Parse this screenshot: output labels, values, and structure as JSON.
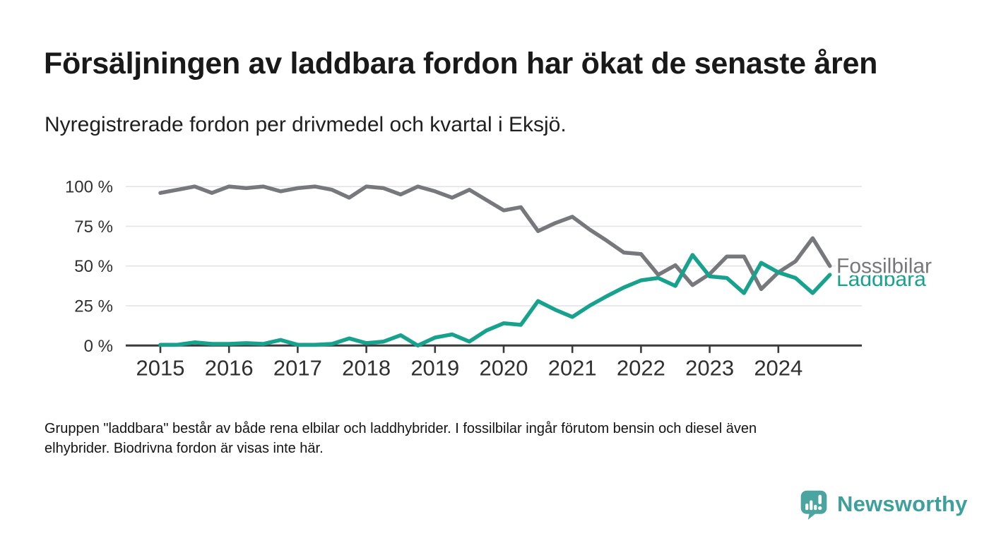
{
  "header": {
    "title": "Försäljningen av laddbara fordon har ökat de senaste åren",
    "subtitle": "Nyregistrerade fordon per drivmedel och kvartal i Eksjö."
  },
  "chart_data": {
    "type": "line",
    "title": "Försäljningen av laddbara fordon har ökat de senaste åren",
    "subtitle": "Nyregistrerade fordon per drivmedel och kvartal i Eksjö.",
    "unit": "percent",
    "ylim": [
      0,
      100
    ],
    "grid": true,
    "legend_position": "end-of-line-labels-right",
    "axis_color": "#3a3a3c",
    "grid_color": "#e4e4e6",
    "tick_color": "#303030",
    "y_ticks": [
      100,
      75,
      50,
      25,
      0
    ],
    "y_tick_labels": [
      "100 %",
      "75 %",
      "50 %",
      "25 %",
      "0 %"
    ],
    "x_tick_labels": [
      "2015",
      "2016",
      "2017",
      "2018",
      "2019",
      "2020",
      "2021",
      "2022",
      "2023",
      "2024"
    ],
    "x": [
      "2015 Q1",
      "2015 Q2",
      "2015 Q3",
      "2015 Q4",
      "2016 Q1",
      "2016 Q2",
      "2016 Q3",
      "2016 Q4",
      "2017 Q1",
      "2017 Q2",
      "2017 Q3",
      "2017 Q4",
      "2018 Q1",
      "2018 Q2",
      "2018 Q3",
      "2018 Q4",
      "2019 Q1",
      "2019 Q2",
      "2019 Q3",
      "2019 Q4",
      "2020 Q1",
      "2020 Q2",
      "2020 Q3",
      "2020 Q4",
      "2021 Q1",
      "2021 Q2",
      "2021 Q3",
      "2021 Q4",
      "2022 Q1",
      "2022 Q2",
      "2022 Q3",
      "2022 Q4",
      "2023 Q1",
      "2023 Q2",
      "2023 Q3",
      "2023 Q4",
      "2024 Q1",
      "2024 Q2",
      "2024 Q3",
      "2024 Q4"
    ],
    "series": [
      {
        "name": "Fossilbilar",
        "color": "#77787b",
        "values": [
          96,
          98,
          100,
          96,
          100,
          99,
          100,
          97,
          99,
          100,
          98,
          93,
          100,
          99,
          95,
          100,
          97,
          93,
          98,
          91.5,
          85,
          87,
          72,
          77,
          81,
          73,
          66,
          58.5,
          57.5,
          44.5,
          50.5,
          38,
          45,
          56,
          56,
          35.5,
          46,
          53,
          67.5,
          50
        ]
      },
      {
        "name": "Laddbara",
        "color": "#17a28e",
        "values": [
          0.5,
          0.5,
          2,
          1,
          1,
          1.5,
          1,
          3.5,
          0.5,
          0.5,
          1,
          4.5,
          1.5,
          2.5,
          6.5,
          0,
          5,
          7,
          2.5,
          9.5,
          14,
          13,
          28,
          22.5,
          18,
          25,
          31,
          36.5,
          41,
          42.5,
          37.5,
          57,
          43.5,
          42.5,
          33,
          52,
          46,
          42.5,
          33,
          44.5
        ]
      }
    ]
  },
  "footnote": {
    "lines": [
      "Gruppen \"laddbara\" består av både rena elbilar och laddhybrider. I fossilbilar ingår förutom bensin och diesel även",
      "elhybrider. Biodrivna fordon är visas inte här."
    ]
  },
  "branding": {
    "name": "Newsworthy",
    "brand_color": "#3da09b",
    "bubble_color": "#4aa5a1"
  }
}
